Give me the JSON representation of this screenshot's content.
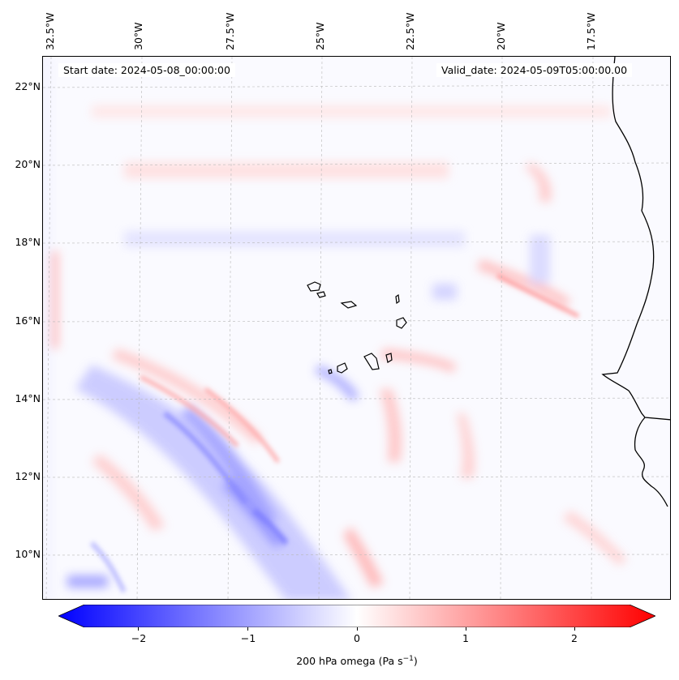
{
  "map": {
    "region": "Cabo Verde / West African coast",
    "start_date": "Start date: 2024-05-08_00:00:00",
    "valid_date": "Valid_date: 2024-05-09T05:00:00.00",
    "longitude_labels": [
      "32.5°W",
      "30°W",
      "27.5°W",
      "25°W",
      "22.5°W",
      "20°W",
      "17.5°W"
    ],
    "latitude_labels": [
      "22°N",
      "20°N",
      "18°N",
      "16°N",
      "14°N",
      "12°N",
      "10°N"
    ],
    "gridlines": true,
    "coastline_color": "#000000",
    "field": "vertical velocity (omega) at 200 hPa"
  },
  "colorbar": {
    "label_prefix": "200 hPa omega (Pa s",
    "label_exponent": "−1",
    "label_suffix": ")",
    "ticks": [
      "−2",
      "−1",
      "0",
      "1",
      "2"
    ],
    "tick_values": [
      -2,
      -1,
      0,
      1,
      2
    ],
    "range": [
      -2.5,
      2.5
    ],
    "extend": "both",
    "colormap": "bwr",
    "color_min": "#0000ff",
    "color_mid": "#ffffff",
    "color_max": "#ff0000"
  }
}
